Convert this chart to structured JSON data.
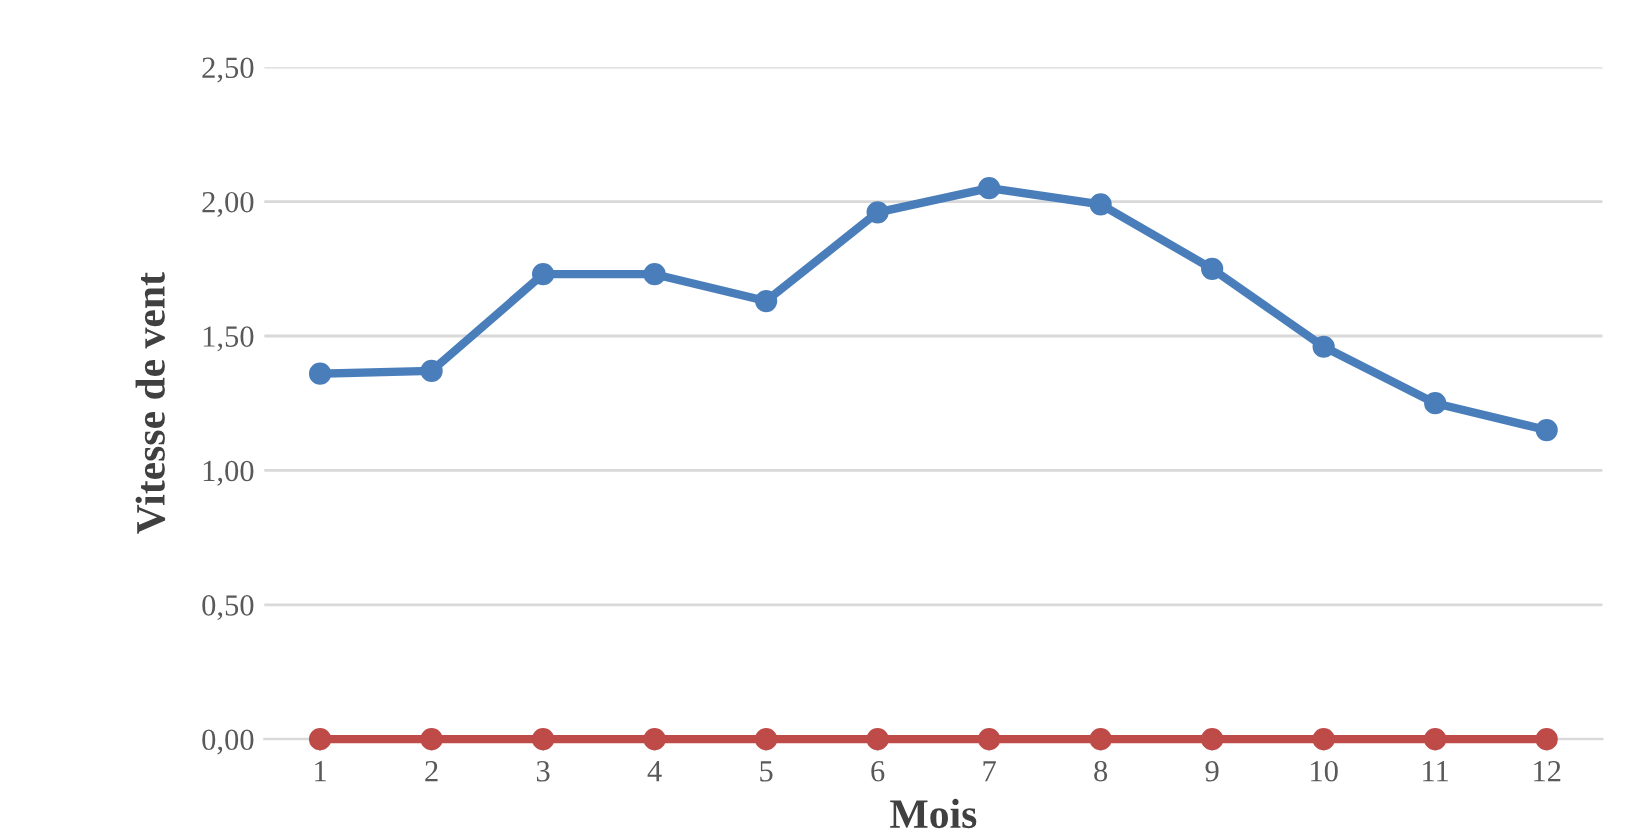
{
  "chart_data": {
    "type": "line",
    "xlabel": "Mois",
    "ylabel": "Vitesse de vent",
    "categories": [
      "1",
      "2",
      "3",
      "4",
      "5",
      "6",
      "7",
      "8",
      "9",
      "10",
      "11",
      "12"
    ],
    "series": [
      {
        "color": "#4a7ebb",
        "values": [
          1.36,
          1.37,
          1.73,
          1.73,
          1.63,
          1.96,
          2.05,
          1.99,
          1.75,
          1.46,
          1.25,
          1.15
        ]
      },
      {
        "color": "#be4b48",
        "values": [
          0,
          0,
          0,
          0,
          0,
          0,
          0,
          0,
          0,
          0,
          0,
          0
        ]
      }
    ],
    "ylim": [
      0,
      2.5
    ],
    "yticks": [
      {
        "value": 0,
        "label": "0,00"
      },
      {
        "value": 0.5,
        "label": "0,50"
      },
      {
        "value": 1,
        "label": "1,00"
      },
      {
        "value": 1.5,
        "label": "1,50"
      },
      {
        "value": 2,
        "label": "2,00"
      },
      {
        "value": 2.5,
        "label": "2,50"
      }
    ],
    "grid": "y",
    "legend": false,
    "marker": "circle",
    "line_style": "solid"
  }
}
